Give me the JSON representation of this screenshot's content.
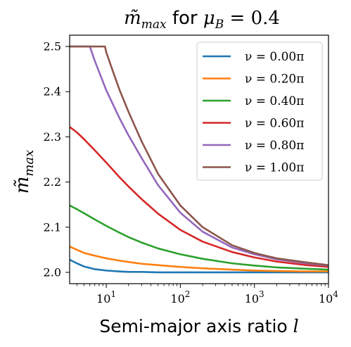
{
  "chart_data": {
    "type": "line",
    "title_prefix": "m̃",
    "title_prefix_sub": "max",
    "title_middle": " for ",
    "title_math": "μ",
    "title_math_sub": "B",
    "title_suffix": " = 0.4",
    "xlabel_text": "Semi-major axis ratio ",
    "xlabel_math": "l",
    "ylabel_main": "m̃",
    "ylabel_sub": "max",
    "xscale": "log",
    "xlim": [
      3.2,
      10000
    ],
    "ylim": [
      1.975,
      2.525
    ],
    "xticks": [
      {
        "value": 10,
        "base": "10",
        "exp": "1"
      },
      {
        "value": 100,
        "base": "10",
        "exp": "2"
      },
      {
        "value": 1000,
        "base": "10",
        "exp": "3"
      },
      {
        "value": 10000,
        "base": "10",
        "exp": "4"
      }
    ],
    "yticks": [
      "2.0",
      "2.1",
      "2.2",
      "2.3",
      "2.4",
      "2.5"
    ],
    "grid": false,
    "legend_placement": "upper right",
    "series": [
      {
        "name": "ν = 0.00π",
        "color": "#1f77b4",
        "x": [
          3.2,
          4,
          5,
          7,
          10,
          15,
          20,
          30,
          50,
          100,
          200,
          500,
          1000,
          10000
        ],
        "y": [
          2.028,
          2.02,
          2.013,
          2.007,
          2.004,
          2.002,
          2.001,
          2.001,
          2.0,
          2.0,
          2.0,
          2.0,
          2.0,
          2.0
        ]
      },
      {
        "name": "ν = 0.20π",
        "color": "#ff7f0e",
        "x": [
          3.2,
          4,
          5,
          7,
          10,
          15,
          20,
          30,
          50,
          100,
          200,
          500,
          1000,
          2000,
          5000,
          10000
        ],
        "y": [
          2.057,
          2.05,
          2.043,
          2.037,
          2.031,
          2.026,
          2.023,
          2.019,
          2.016,
          2.012,
          2.009,
          2.006,
          2.004,
          2.003,
          2.002,
          2.002
        ]
      },
      {
        "name": "ν = 0.40π",
        "color": "#2ca02c",
        "x": [
          3.2,
          4,
          5,
          7,
          10,
          15,
          20,
          30,
          50,
          100,
          200,
          500,
          1000,
          2000,
          5000,
          10000
        ],
        "y": [
          2.148,
          2.14,
          2.131,
          2.117,
          2.103,
          2.088,
          2.078,
          2.066,
          2.053,
          2.04,
          2.03,
          2.02,
          2.015,
          2.011,
          2.008,
          2.006
        ]
      },
      {
        "name": "ν = 0.60π",
        "color": "#d62728",
        "x": [
          3.2,
          4,
          5,
          7,
          10,
          15,
          20,
          30,
          50,
          100,
          200,
          500,
          1000,
          2000,
          5000,
          10000
        ],
        "y": [
          2.322,
          2.31,
          2.295,
          2.27,
          2.243,
          2.211,
          2.19,
          2.162,
          2.13,
          2.094,
          2.068,
          2.045,
          2.033,
          2.024,
          2.016,
          2.012
        ]
      },
      {
        "name": "ν = 0.80π",
        "color": "#9467bd",
        "x": [
          3.2,
          4,
          5,
          6,
          7,
          10,
          15,
          20,
          30,
          50,
          100,
          200,
          500,
          1000,
          2000,
          5000,
          10000
        ],
        "y": [
          2.5,
          2.5,
          2.5,
          2.5,
          2.468,
          2.403,
          2.342,
          2.303,
          2.253,
          2.193,
          2.132,
          2.09,
          2.055,
          2.04,
          2.029,
          2.02,
          2.015
        ]
      },
      {
        "name": "ν = 1.00π",
        "color": "#8c564b",
        "x": [
          3.2,
          5,
          7,
          9.6,
          10,
          12,
          15,
          20,
          30,
          50,
          100,
          200,
          500,
          1000,
          2000,
          5000,
          10000
        ],
        "y": [
          2.5,
          2.5,
          2.5,
          2.5,
          2.487,
          2.45,
          2.405,
          2.355,
          2.29,
          2.218,
          2.148,
          2.1,
          2.06,
          2.043,
          2.031,
          2.022,
          2.016
        ]
      }
    ]
  }
}
